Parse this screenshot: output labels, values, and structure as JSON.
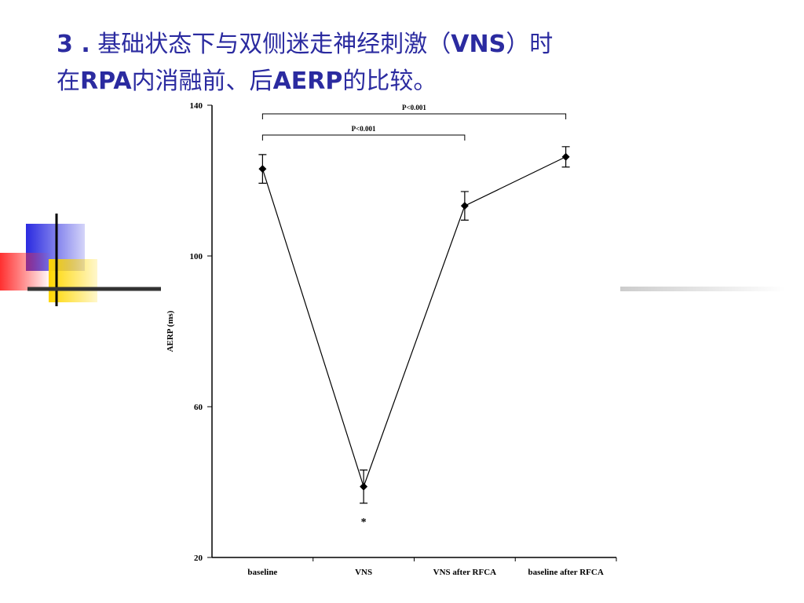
{
  "slide_title": [
    [
      {
        "text": "3 .",
        "bold": true
      },
      {
        "text": " 基础状态下与双侧迷走神经刺激（",
        "bold": false
      },
      {
        "text": "VNS",
        "bold": true
      },
      {
        "text": "）时",
        "bold": false
      }
    ],
    [
      {
        "text": "在",
        "bold": false
      },
      {
        "text": "RPA",
        "bold": true
      },
      {
        "text": "内消融前、后",
        "bold": false
      },
      {
        "text": "AERP",
        "bold": true
      },
      {
        "text": "的比较。",
        "bold": false
      }
    ]
  ],
  "chart_data": {
    "type": "line",
    "y_label": "AERP (ms)",
    "categories": [
      "baseline",
      "VNS",
      "VNS after RFCA",
      "baseline after RFCA"
    ],
    "values": [
      123.1,
      38.8,
      113.3,
      126.3
    ],
    "errors": [
      3.8,
      4.4,
      3.8,
      2.7
    ],
    "color": "#000000",
    "ylim": [
      20,
      140
    ],
    "yticks": [
      20,
      60,
      100,
      140
    ],
    "annotations": [
      "P<0.001",
      "P<0.001",
      "*"
    ]
  }
}
